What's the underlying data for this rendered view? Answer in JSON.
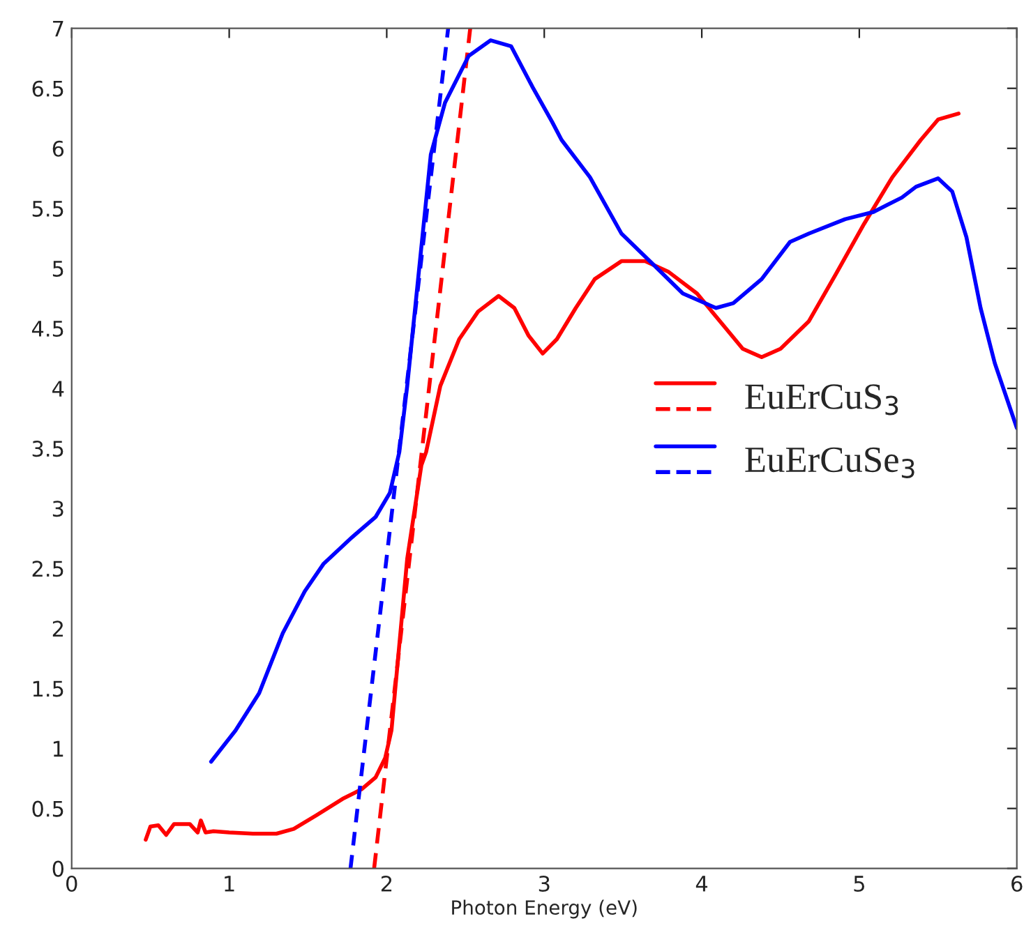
{
  "chart_data": {
    "type": "line",
    "xlabel": "Photon Energy (eV)",
    "xlim": [
      0,
      6
    ],
    "xticks": [
      0,
      1,
      2,
      3,
      4,
      5,
      6
    ],
    "ylim": [
      0,
      7
    ],
    "yticks": [
      0,
      0.5,
      1,
      1.5,
      2,
      2.5,
      3,
      3.5,
      4,
      4.5,
      5,
      5.5,
      6,
      6.5,
      7
    ],
    "grid": false,
    "legend": "right",
    "marker": "none",
    "series": [
      {
        "name": "EuErCuS$_{3}$",
        "color": "#ff0000",
        "line_style": "solid",
        "x": [
          0.47,
          0.5,
          0.55,
          0.6,
          0.65,
          0.7,
          0.75,
          0.8,
          0.82,
          0.85,
          0.9,
          1.0,
          1.15,
          1.3,
          1.41,
          1.55,
          1.72,
          1.84,
          1.93,
          1.99,
          2.03,
          2.13,
          2.22,
          2.25,
          2.34,
          2.46,
          2.58,
          2.71,
          2.81,
          2.9,
          2.99,
          3.08,
          3.2,
          3.32,
          3.49,
          3.64,
          3.79,
          3.97,
          4.14,
          4.26,
          4.38,
          4.5,
          4.68,
          4.85,
          5.03,
          5.21,
          5.39,
          5.5,
          5.63
        ],
        "values": [
          0.24,
          0.35,
          0.36,
          0.28,
          0.37,
          0.37,
          0.37,
          0.3,
          0.4,
          0.3,
          0.31,
          0.3,
          0.29,
          0.29,
          0.33,
          0.44,
          0.58,
          0.66,
          0.76,
          0.92,
          1.15,
          2.58,
          3.36,
          3.47,
          4.02,
          4.41,
          4.64,
          4.77,
          4.67,
          4.44,
          4.29,
          4.41,
          4.67,
          4.91,
          5.06,
          5.06,
          4.97,
          4.79,
          4.52,
          4.33,
          4.26,
          4.33,
          4.56,
          4.95,
          5.37,
          5.76,
          6.07,
          6.24,
          6.29
        ]
      },
      {
        "color": "#ff0000",
        "line_style": "dashed",
        "x": [
          1.92,
          2.53
        ],
        "values": [
          0,
          7
        ]
      },
      {
        "name": "EuErCuSe$_{3}$",
        "color": "#0000ff",
        "line_style": "solid",
        "x": [
          0.885,
          1.04,
          1.19,
          1.34,
          1.48,
          1.6,
          1.78,
          1.93,
          2.02,
          2.08,
          2.13,
          2.22,
          2.28,
          2.37,
          2.52,
          2.66,
          2.79,
          2.93,
          3.05,
          3.11,
          3.29,
          3.49,
          3.67,
          3.88,
          4.09,
          4.2,
          4.38,
          4.56,
          4.68,
          4.91,
          5.09,
          5.27,
          5.36,
          5.5,
          5.59,
          5.68,
          5.77,
          5.86,
          6.0
        ],
        "values": [
          0.89,
          1.15,
          1.46,
          1.96,
          2.31,
          2.54,
          2.76,
          2.93,
          3.13,
          3.47,
          4.02,
          5.18,
          5.95,
          6.38,
          6.77,
          6.9,
          6.85,
          6.5,
          6.22,
          6.07,
          5.76,
          5.29,
          5.06,
          4.79,
          4.67,
          4.71,
          4.91,
          5.22,
          5.29,
          5.41,
          5.47,
          5.59,
          5.68,
          5.75,
          5.64,
          5.26,
          4.67,
          4.21,
          3.67
        ]
      },
      {
        "color": "#0000ff",
        "line_style": "dashed",
        "x": [
          1.77,
          2.39
        ],
        "values": [
          0,
          7
        ]
      }
    ]
  }
}
